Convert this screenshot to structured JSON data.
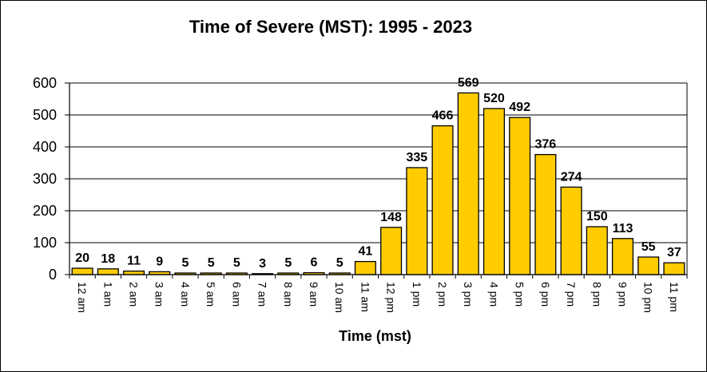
{
  "chart_data": {
    "type": "bar",
    "title": "Time of Severe (MST): 1995 - 2023",
    "xlabel": "Time (mst)",
    "ylabel": "",
    "ylim": [
      0,
      600
    ],
    "yticks": [
      0,
      100,
      200,
      300,
      400,
      500,
      600
    ],
    "grid": true,
    "categories": [
      "12 am",
      "1 am",
      "2 am",
      "3 am",
      "4 am",
      "5 am",
      "6 am",
      "7 am",
      "8 am",
      "9 am",
      "10 am",
      "11 am",
      "12 pm",
      "1 pm",
      "2 pm",
      "3 pm",
      "4 pm",
      "5 pm",
      "6 pm",
      "7 pm",
      "8 pm",
      "9 pm",
      "10 pm",
      "11 pm"
    ],
    "values": [
      20,
      18,
      11,
      9,
      5,
      5,
      5,
      3,
      5,
      6,
      5,
      41,
      148,
      335,
      466,
      569,
      520,
      492,
      376,
      274,
      150,
      113,
      55,
      37
    ],
    "bar_color": "#FFCC00",
    "bar_edge_color": "#000000",
    "data_labels": true
  }
}
